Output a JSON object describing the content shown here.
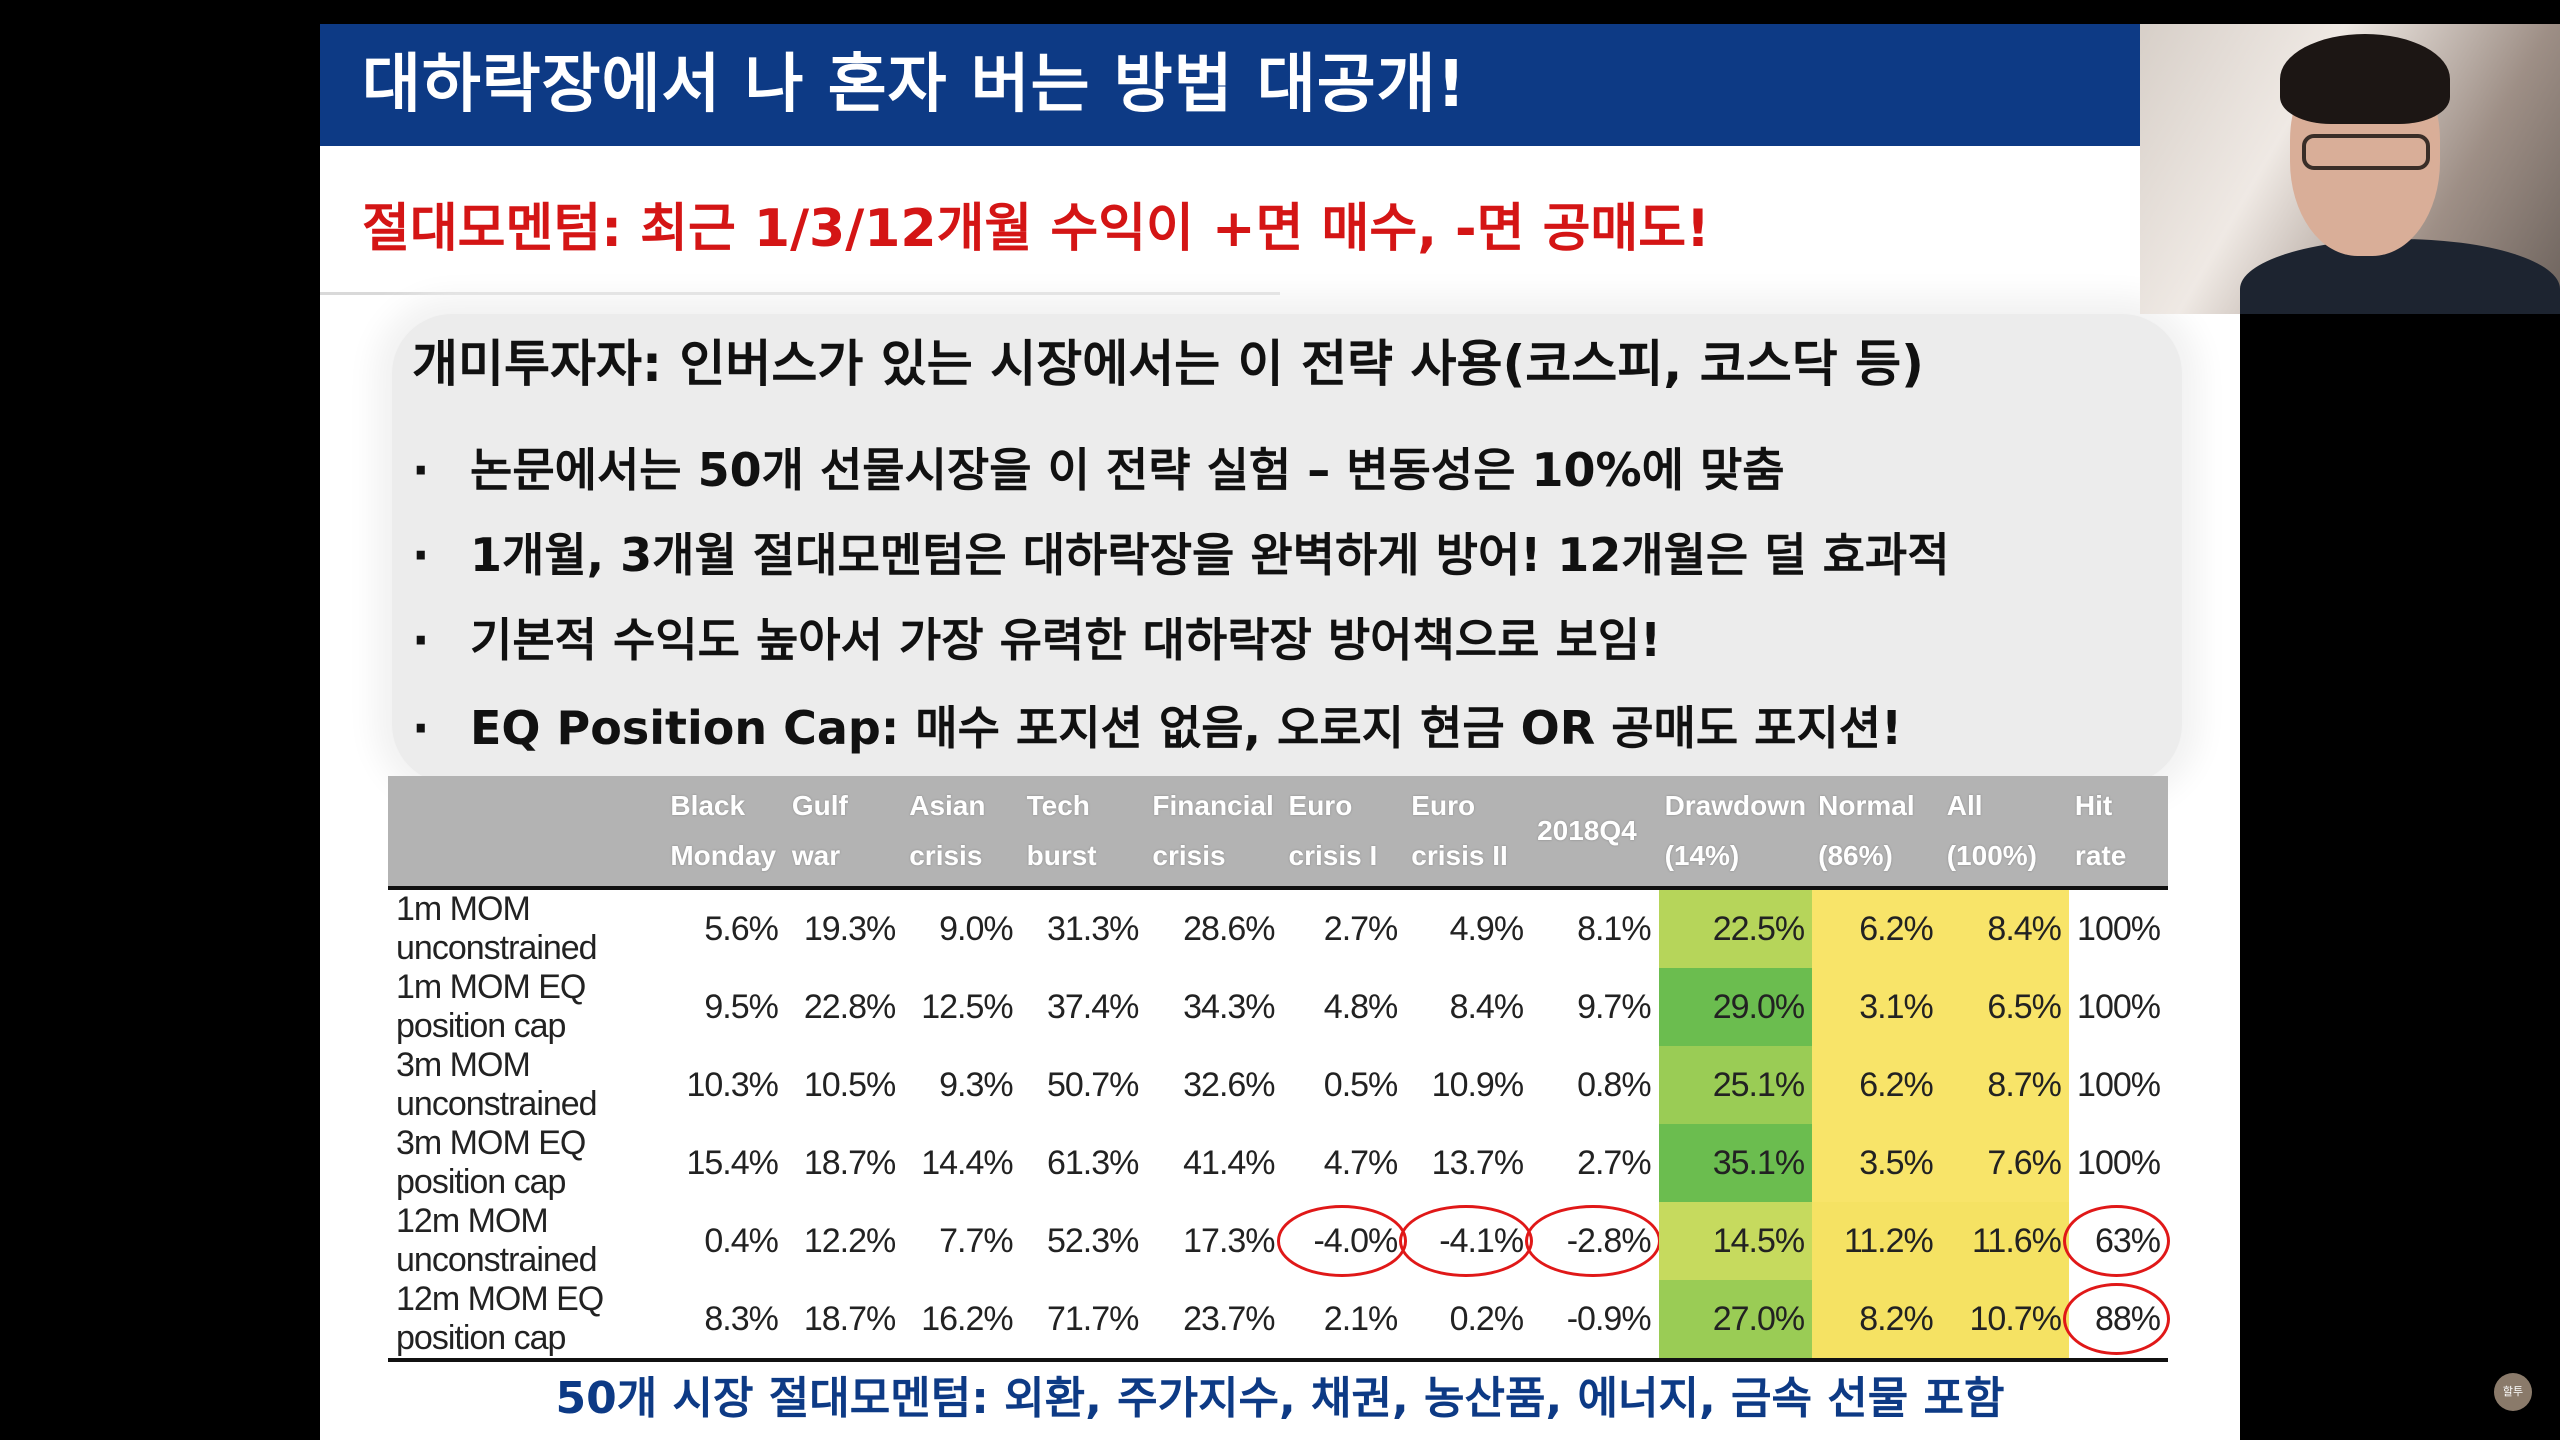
{
  "slide": {
    "title": "대하락장에서 나 혼자 버는 방법 대공개!",
    "subtitle": "절대모멘텀: 최근 1/3/12개월 수익이 +면 매수, -면 공매도!",
    "bullet_heading": "개미투자자: 인버스가 있는 시장에서는 이 전략 사용(코스피, 코스닥 등)",
    "bullets": [
      "논문에서는 50개 선물시장을 이 전략 실험 – 변동성은 10%에 맞춤",
      "1개월, 3개월 절대모멘텀은 대하락장을 완벽하게 방어! 12개월은 덜 효과적",
      "기본적 수익도 높아서 가장 유력한 대하락장 방어책으로 보임!",
      "EQ Position Cap: 매수 포지션 없음, 오로지 현금 OR 공매도 포지션!"
    ],
    "bullet_dot": "·",
    "footer": "50개 시장 절대모멘텀: 외환, 주가지수, 채권, 농산품, 에너지, 금속 선물 포함",
    "colors": {
      "title_bar": "#0d3a85",
      "subtitle": "#d41515",
      "drawdown_green": "#6bbd4f",
      "normal_yellow": "#f5e263",
      "circle_red": "#e01818"
    }
  },
  "table": {
    "headers": [
      "",
      "Black\nMonday",
      "Gulf war",
      "Asian\ncrisis",
      "Tech burst",
      "Financial\ncrisis",
      "Euro\ncrisis I",
      "Euro\ncrisis II",
      "2018Q4",
      "Drawdown\n(14%)",
      "Normal\n(86%)",
      "All\n(100%)",
      "Hit\nrate"
    ],
    "rows": [
      {
        "label": "1m MOM unconstrained",
        "cells": [
          "5.6%",
          "19.3%",
          "9.0%",
          "31.3%",
          "28.6%",
          "2.7%",
          "4.9%",
          "8.1%",
          "22.5%",
          "6.2%",
          "8.4%",
          "100%"
        ]
      },
      {
        "label": "1m MOM EQ position cap",
        "cells": [
          "9.5%",
          "22.8%",
          "12.5%",
          "37.4%",
          "34.3%",
          "4.8%",
          "8.4%",
          "9.7%",
          "29.0%",
          "3.1%",
          "6.5%",
          "100%"
        ]
      },
      {
        "label": "3m MOM unconstrained",
        "cells": [
          "10.3%",
          "10.5%",
          "9.3%",
          "50.7%",
          "32.6%",
          "0.5%",
          "10.9%",
          "0.8%",
          "25.1%",
          "6.2%",
          "8.7%",
          "100%"
        ]
      },
      {
        "label": "3m MOM EQ position cap",
        "cells": [
          "15.4%",
          "18.7%",
          "14.4%",
          "61.3%",
          "41.4%",
          "4.7%",
          "13.7%",
          "2.7%",
          "35.1%",
          "3.5%",
          "7.6%",
          "100%"
        ]
      },
      {
        "label": "12m MOM unconstrained",
        "cells": [
          "0.4%",
          "12.2%",
          "7.7%",
          "52.3%",
          "17.3%",
          "-4.0%",
          "-4.1%",
          "-2.8%",
          "14.5%",
          "11.2%",
          "11.6%",
          "63%"
        ]
      },
      {
        "label": "12m MOM EQ position cap",
        "cells": [
          "8.3%",
          "18.7%",
          "16.2%",
          "71.7%",
          "23.7%",
          "2.1%",
          "0.2%",
          "-0.9%",
          "27.0%",
          "8.2%",
          "10.7%",
          "88%"
        ]
      }
    ]
  },
  "overlay": {
    "channel_badge": "할투"
  }
}
